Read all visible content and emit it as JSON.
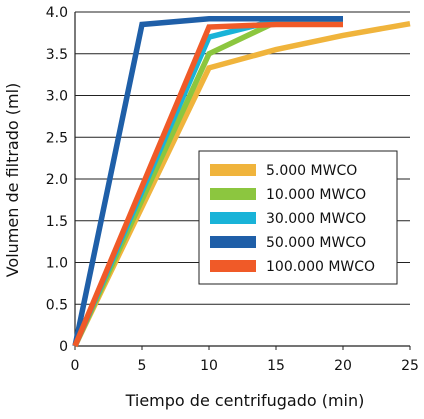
{
  "chart_data": {
    "type": "line",
    "xlabel": "Tiempo de centrifugado (min)",
    "ylabel": "Volumen de filtrado (ml)",
    "xlim": [
      0,
      25
    ],
    "ylim": [
      0,
      4.0
    ],
    "x_ticks": [
      "0",
      "5",
      "10",
      "15",
      "20",
      "25"
    ],
    "y_ticks": [
      "0",
      "0.5",
      "1.0",
      "1.5",
      "2.0",
      "2.5",
      "3.0",
      "3.5",
      "4.0"
    ],
    "grid": "horizontal",
    "legend_position": "lower-right",
    "series": [
      {
        "name": "5.000 MWCO",
        "color": "#F0B43C",
        "points": [
          [
            0,
            0
          ],
          [
            10,
            3.33
          ],
          [
            15,
            3.55
          ],
          [
            20,
            3.72
          ],
          [
            25,
            3.86
          ]
        ]
      },
      {
        "name": "10.000 MWCO",
        "color": "#8CC63F",
        "points": [
          [
            0,
            0
          ],
          [
            10,
            3.5
          ],
          [
            15,
            3.88
          ],
          [
            20,
            3.88
          ]
        ]
      },
      {
        "name": "30.000 MWCO",
        "color": "#19B3D8",
        "points": [
          [
            0,
            0
          ],
          [
            10,
            3.7
          ],
          [
            15,
            3.9
          ],
          [
            20,
            3.9
          ]
        ]
      },
      {
        "name": "50.000 MWCO",
        "color": "#1F5FA8",
        "points": [
          [
            0,
            0
          ],
          [
            5,
            3.85
          ],
          [
            10,
            3.92
          ],
          [
            20,
            3.92
          ]
        ]
      },
      {
        "name": "100.000 MWCO",
        "color": "#F05A28",
        "points": [
          [
            0,
            0
          ],
          [
            10,
            3.82
          ],
          [
            15,
            3.85
          ],
          [
            20,
            3.85
          ]
        ]
      }
    ]
  }
}
